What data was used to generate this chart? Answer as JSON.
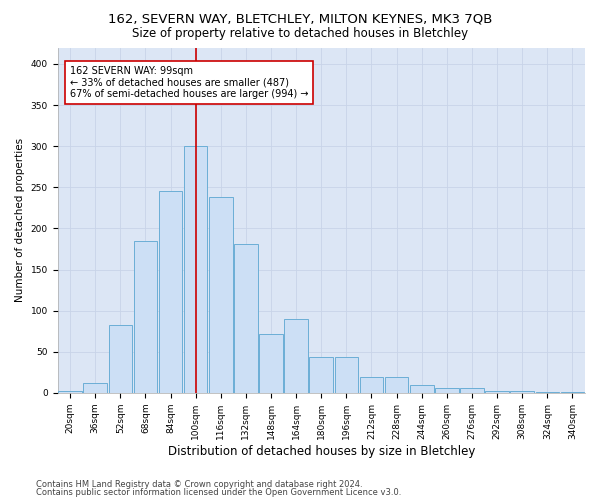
{
  "title_line1": "162, SEVERN WAY, BLETCHLEY, MILTON KEYNES, MK3 7QB",
  "title_line2": "Size of property relative to detached houses in Bletchley",
  "xlabel": "Distribution of detached houses by size in Bletchley",
  "ylabel": "Number of detached properties",
  "categories": [
    "20sqm",
    "36sqm",
    "52sqm",
    "68sqm",
    "84sqm",
    "100sqm",
    "116sqm",
    "132sqm",
    "148sqm",
    "164sqm",
    "180sqm",
    "196sqm",
    "212sqm",
    "228sqm",
    "244sqm",
    "260sqm",
    "276sqm",
    "292sqm",
    "308sqm",
    "324sqm",
    "340sqm"
  ],
  "bar_values": [
    2,
    12,
    83,
    185,
    245,
    300,
    238,
    181,
    72,
    90,
    43,
    43,
    19,
    19,
    10,
    6,
    6,
    2,
    2,
    1,
    1
  ],
  "bar_color": "#ccdff5",
  "bar_edge_color": "#6baed6",
  "vline_color": "#cc0000",
  "vline_x": 100,
  "annotation_text": "162 SEVERN WAY: 99sqm\n← 33% of detached houses are smaller (487)\n67% of semi-detached houses are larger (994) →",
  "annotation_box_color": "white",
  "annotation_box_edge": "#cc0000",
  "ylim": [
    0,
    420
  ],
  "yticks": [
    0,
    50,
    100,
    150,
    200,
    250,
    300,
    350,
    400
  ],
  "grid_color": "#c8d4e8",
  "background_color": "#dce6f5",
  "footer_line1": "Contains HM Land Registry data © Crown copyright and database right 2024.",
  "footer_line2": "Contains public sector information licensed under the Open Government Licence v3.0.",
  "title_fontsize": 9.5,
  "subtitle_fontsize": 8.5,
  "xlabel_fontsize": 8.5,
  "ylabel_fontsize": 7.5,
  "tick_fontsize": 6.5,
  "annot_fontsize": 7,
  "footer_fontsize": 6
}
